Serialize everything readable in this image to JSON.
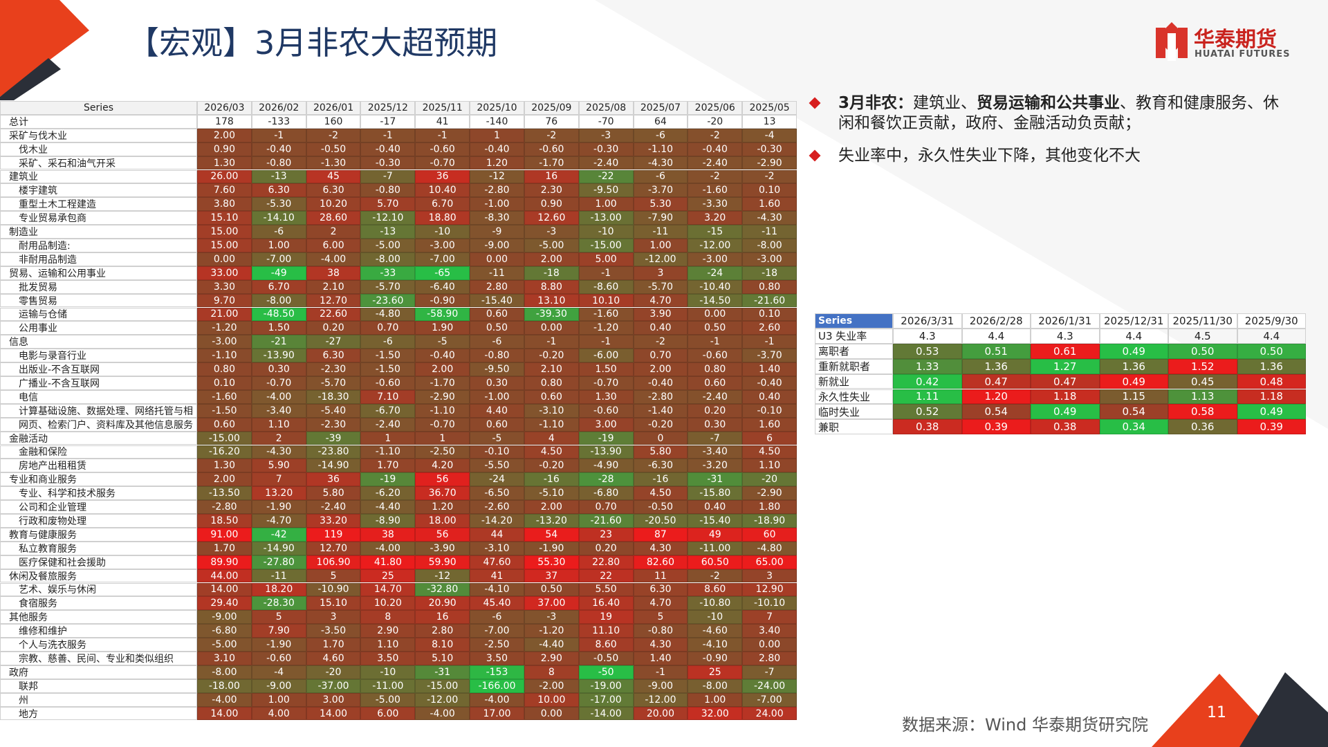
{
  "header": {
    "title": "【宏观】3月非农大超预期",
    "logo": "华泰期货",
    "logo_en": "HUATAI FUTURES"
  },
  "bullets": [
    {
      "parts": [
        {
          "text": "3月非农：",
          "bold": true
        },
        {
          "text": "建筑业、",
          "bold": false
        },
        {
          "text": "贸易运输和公共事业",
          "bold": true
        },
        {
          "text": "、教育和健康服务、休闲和餐饮正贡献，政府、金融活动负贡献；",
          "bold": false
        }
      ]
    },
    {
      "parts": [
        {
          "text": "失业率中，永久性失业下降，其他变化不大",
          "bold": false
        }
      ]
    }
  ],
  "table": {
    "header": [
      "Series",
      "2026/03",
      "2026/02",
      "2026/01",
      "2025/12",
      "2025/11",
      "2025/10",
      "2025/09",
      "2025/08",
      "2025/07",
      "2025/06",
      "2025/05"
    ],
    "total": [
      "总计",
      "178",
      "-133",
      "160",
      "-17",
      "41",
      "-140",
      "76",
      "-70",
      "64",
      "-20",
      "13"
    ],
    "groups": [
      {
        "row": [
          "采矿与伐木业",
          "2.00",
          "-1",
          "-2",
          "-1",
          "-1",
          "1",
          "-2",
          "-3",
          "-6",
          "-2",
          "-4"
        ],
        "children": [
          [
            "伐木业",
            "0.90",
            "-0.40",
            "-0.50",
            "-0.40",
            "-0.60",
            "-0.40",
            "-0.60",
            "-0.30",
            "-1.10",
            "-0.40",
            "-0.30"
          ],
          [
            "采矿、采石和油气开采",
            "1.30",
            "-0.80",
            "-1.30",
            "-0.30",
            "-0.70",
            "1.20",
            "-1.70",
            "-2.40",
            "-4.30",
            "-2.40",
            "-2.90"
          ]
        ]
      },
      {
        "row": [
          "建筑业",
          "26.00",
          "-13",
          "45",
          "-7",
          "36",
          "-12",
          "16",
          "-22",
          "-6",
          "-2",
          "-2"
        ],
        "children": [
          [
            "楼宇建筑",
            "7.60",
            "6.30",
            "6.30",
            "-0.80",
            "10.40",
            "-2.80",
            "2.30",
            "-9.50",
            "-3.70",
            "-1.60",
            "0.10"
          ],
          [
            "重型土木工程建造",
            "3.80",
            "-5.30",
            "10.20",
            "5.70",
            "6.70",
            "-1.00",
            "0.90",
            "1.00",
            "5.30",
            "-3.30",
            "1.60"
          ],
          [
            "专业贸易承包商",
            "15.10",
            "-14.10",
            "28.60",
            "-12.10",
            "18.80",
            "-8.30",
            "12.60",
            "-13.00",
            "-7.90",
            "3.20",
            "-4.30"
          ]
        ]
      },
      {
        "row": [
          "制造业",
          "15.00",
          "-6",
          "2",
          "-13",
          "-10",
          "-9",
          "-3",
          "-10",
          "-11",
          "-15",
          "-11"
        ],
        "children": [
          [
            "耐用品制造:",
            "15.00",
            "1.00",
            "6.00",
            "-5.00",
            "-3.00",
            "-9.00",
            "-5.00",
            "-15.00",
            "1.00",
            "-12.00",
            "-8.00"
          ],
          [
            "非耐用品制造",
            "0.00",
            "-7.00",
            "-4.00",
            "-8.00",
            "-7.00",
            "0.00",
            "2.00",
            "5.00",
            "-12.00",
            "-3.00",
            "-3.00"
          ]
        ]
      },
      {
        "row": [
          "贸易、运输和公用事业",
          "33.00",
          "-49",
          "38",
          "-33",
          "-65",
          "-11",
          "-18",
          "-1",
          "3",
          "-24",
          "-18"
        ],
        "children": [
          [
            "批发贸易",
            "3.30",
            "6.70",
            "2.10",
            "-5.70",
            "-6.40",
            "2.80",
            "8.80",
            "-8.60",
            "-5.70",
            "-10.40",
            "0.80"
          ],
          [
            "零售贸易",
            "9.70",
            "-8.00",
            "12.70",
            "-23.60",
            "-0.90",
            "-15.40",
            "13.10",
            "10.10",
            "4.70",
            "-14.50",
            "-21.60"
          ],
          [
            "运输与仓储",
            "21.00",
            "-48.50",
            "22.60",
            "-4.80",
            "-58.90",
            "0.60",
            "-39.30",
            "-1.60",
            "3.90",
            "0.00",
            "0.10"
          ],
          [
            "公用事业",
            "-1.20",
            "1.50",
            "0.20",
            "0.70",
            "1.90",
            "0.50",
            "0.00",
            "-1.20",
            "0.40",
            "0.50",
            "2.60"
          ]
        ]
      },
      {
        "row": [
          "信息",
          "-3.00",
          "-21",
          "-27",
          "-6",
          "-5",
          "-6",
          "-1",
          "-1",
          "-2",
          "-1",
          "-1"
        ],
        "children": [
          [
            "电影与录音行业",
            "-1.10",
            "-13.90",
            "6.30",
            "-1.50",
            "-0.40",
            "-0.80",
            "-0.20",
            "-6.00",
            "0.70",
            "-0.60",
            "-3.70"
          ],
          [
            "出版业-不含互联网",
            "0.80",
            "0.30",
            "-2.30",
            "-1.50",
            "2.00",
            "-9.50",
            "2.10",
            "1.50",
            "2.00",
            "0.80",
            "1.40"
          ],
          [
            "广播业-不含互联网",
            "0.10",
            "-0.70",
            "-5.70",
            "-0.60",
            "-1.70",
            "0.30",
            "0.80",
            "-0.70",
            "-0.40",
            "0.60",
            "-0.40"
          ],
          [
            "电信",
            "-1.60",
            "-4.00",
            "-18.30",
            "7.10",
            "-2.90",
            "-1.00",
            "0.60",
            "1.30",
            "-2.80",
            "-2.40",
            "0.40"
          ],
          [
            "计算基础设施、数据处理、网络托管与相",
            "-1.50",
            "-3.40",
            "-5.40",
            "-6.70",
            "-1.10",
            "4.40",
            "-3.10",
            "-0.60",
            "-1.40",
            "0.20",
            "-0.10"
          ],
          [
            "网页、检索门户、资料库及其他信息服务",
            "0.60",
            "1.10",
            "-2.30",
            "-2.40",
            "-0.70",
            "0.60",
            "-1.10",
            "3.00",
            "-0.20",
            "0.30",
            "1.60"
          ]
        ]
      },
      {
        "row": [
          "金融活动",
          "-15.00",
          "2",
          "-39",
          "1",
          "1",
          "-5",
          "4",
          "-19",
          "0",
          "-7",
          "6"
        ],
        "children": [
          [
            "金融和保险",
            "-16.20",
            "-4.30",
            "-23.80",
            "-1.10",
            "-2.50",
            "-0.10",
            "4.50",
            "-13.90",
            "5.80",
            "-3.40",
            "4.50"
          ],
          [
            "房地产出租租赁",
            "1.30",
            "5.90",
            "-14.90",
            "1.70",
            "4.20",
            "-5.50",
            "-0.20",
            "-4.90",
            "-6.30",
            "-3.20",
            "1.10"
          ]
        ]
      },
      {
        "row": [
          "专业和商业服务",
          "2.00",
          "7",
          "36",
          "-19",
          "56",
          "-24",
          "-16",
          "-28",
          "-16",
          "-31",
          "-20"
        ],
        "children": [
          [
            "专业、科学和技术服务",
            "-13.50",
            "13.20",
            "5.80",
            "-6.20",
            "36.70",
            "-6.50",
            "-5.10",
            "-6.80",
            "4.50",
            "-15.80",
            "-2.90"
          ],
          [
            "公司和企业管理",
            "-2.80",
            "-1.90",
            "-2.40",
            "-4.40",
            "1.20",
            "-2.60",
            "2.00",
            "0.70",
            "-0.50",
            "0.40",
            "1.80"
          ],
          [
            "行政和废物处理",
            "18.50",
            "-4.70",
            "33.20",
            "-8.90",
            "18.00",
            "-14.20",
            "-13.20",
            "-21.60",
            "-20.50",
            "-15.40",
            "-18.90"
          ]
        ]
      },
      {
        "row": [
          "教育与健康服务",
          "91.00",
          "-42",
          "119",
          "38",
          "56",
          "44",
          "54",
          "23",
          "87",
          "49",
          "60"
        ],
        "children": [
          [
            "私立教育服务",
            "1.70",
            "-14.90",
            "12.70",
            "-4.00",
            "-3.90",
            "-3.10",
            "-1.90",
            "0.20",
            "4.30",
            "-11.00",
            "-4.80"
          ],
          [
            "医疗保健和社会援助",
            "89.90",
            "-27.80",
            "106.90",
            "41.80",
            "59.90",
            "47.60",
            "55.30",
            "22.80",
            "82.60",
            "60.50",
            "65.00"
          ]
        ]
      },
      {
        "row": [
          "休闲及餐旅服务",
          "44.00",
          "-11",
          "5",
          "25",
          "-12",
          "41",
          "37",
          "22",
          "11",
          "-2",
          "3"
        ],
        "children": [
          [
            "艺术、娱乐与休闲",
            "14.00",
            "18.20",
            "-10.90",
            "14.70",
            "-32.80",
            "-4.10",
            "0.50",
            "5.50",
            "6.30",
            "8.60",
            "12.90"
          ],
          [
            "食宿服务",
            "29.40",
            "-28.30",
            "15.10",
            "10.20",
            "20.90",
            "45.40",
            "37.00",
            "16.40",
            "4.70",
            "-10.80",
            "-10.10"
          ]
        ]
      },
      {
        "row": [
          "其他服务",
          "-9.00",
          "5",
          "3",
          "8",
          "16",
          "-6",
          "-3",
          "19",
          "5",
          "-10",
          "7"
        ],
        "children": [
          [
            "维修和维护",
            "-6.80",
            "7.90",
            "-3.50",
            "2.90",
            "2.80",
            "-7.00",
            "-1.20",
            "11.10",
            "-0.80",
            "-4.60",
            "3.40"
          ],
          [
            "个人与洗衣服务",
            "-5.00",
            "-1.90",
            "1.70",
            "1.10",
            "8.10",
            "-2.50",
            "-4.40",
            "8.60",
            "4.30",
            "-4.10",
            "0.00"
          ],
          [
            "宗教、慈善、民间、专业和类似组织",
            "3.10",
            "-0.60",
            "4.60",
            "3.50",
            "5.10",
            "3.50",
            "2.90",
            "-0.50",
            "1.40",
            "-0.90",
            "2.80"
          ]
        ]
      },
      {
        "row": [
          "政府",
          "-8.00",
          "-4",
          "-20",
          "-10",
          "-31",
          "-153",
          "8",
          "-50",
          "-1",
          "25",
          "-7"
        ],
        "children": [
          [
            "联邦",
            "-18.00",
            "-9.00",
            "-37.00",
            "-11.00",
            "-15.00",
            "-166.00",
            "-2.00",
            "-19.00",
            "-9.00",
            "-8.00",
            "-24.00"
          ],
          [
            "州",
            "-4.00",
            "1.00",
            "3.00",
            "-5.00",
            "-12.00",
            "-4.00",
            "10.00",
            "-17.00",
            "-12.00",
            "1.00",
            "-7.00"
          ],
          [
            "地方",
            "14.00",
            "4.00",
            "14.00",
            "6.00",
            "-4.00",
            "17.00",
            "0.00",
            "-14.00",
            "20.00",
            "32.00",
            "24.00"
          ]
        ]
      }
    ]
  },
  "table2": {
    "header": [
      "Series",
      "2026/3/31",
      "2026/2/28",
      "2026/1/31",
      "2025/12/31",
      "2025/11/30",
      "2025/9/30"
    ],
    "u3": [
      "U3 失业率",
      "4.3",
      "4.4",
      "4.3",
      "4.4",
      "4.5",
      "4.4"
    ],
    "rows": [
      [
        "离职者",
        "0.53",
        "0.51",
        "0.61",
        "0.49",
        "0.50",
        "0.50"
      ],
      [
        "重新就职者",
        "1.33",
        "1.36",
        "1.27",
        "1.36",
        "1.52",
        "1.36"
      ],
      [
        "新就业",
        "0.42",
        "0.47",
        "0.47",
        "0.49",
        "0.45",
        "0.48"
      ],
      [
        "永久性失业",
        "1.11",
        "1.20",
        "1.18",
        "1.15",
        "1.13",
        "1.18"
      ],
      [
        "临时失业",
        "0.52",
        "0.54",
        "0.49",
        "0.54",
        "0.58",
        "0.49"
      ],
      [
        "兼职",
        "0.38",
        "0.39",
        "0.38",
        "0.34",
        "0.36",
        "0.39"
      ]
    ]
  },
  "footer": {
    "source": "数据来源：Wind 华泰期货研究院",
    "page": "11"
  }
}
